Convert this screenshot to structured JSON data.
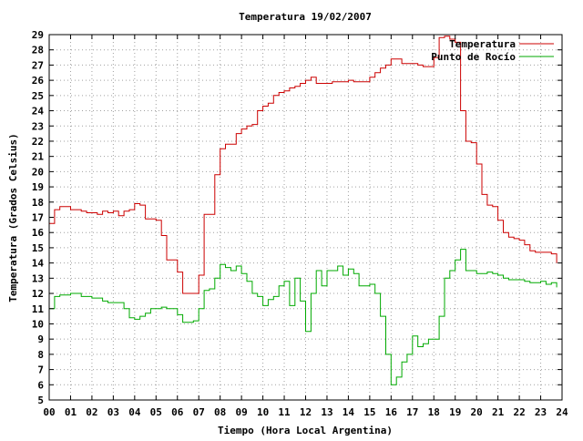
{
  "chart_data": {
    "type": "line",
    "title": "Temperatura 19/02/2007",
    "xlabel": "Tiempo (Hora Local Argentina)",
    "ylabel": "Temperatura (Grados Celsius)",
    "xlim": [
      0,
      24
    ],
    "ylim": [
      5,
      29
    ],
    "grid": true,
    "legend_position": "top-right",
    "x_tick_labels": [
      "00",
      "01",
      "02",
      "03",
      "04",
      "05",
      "06",
      "07",
      "08",
      "09",
      "10",
      "11",
      "12",
      "13",
      "14",
      "15",
      "16",
      "17",
      "18",
      "19",
      "20",
      "21",
      "22",
      "23",
      "24"
    ],
    "y_ticks": [
      5,
      6,
      7,
      8,
      9,
      10,
      11,
      12,
      13,
      14,
      15,
      16,
      17,
      18,
      19,
      20,
      21,
      22,
      23,
      24,
      25,
      26,
      27,
      28,
      29
    ],
    "series": [
      {
        "name": "Temperatura",
        "color": "#cc0000",
        "x": [
          0.0,
          0.25,
          0.5,
          0.75,
          1.0,
          1.25,
          1.5,
          1.75,
          2.0,
          2.25,
          2.5,
          2.75,
          3.0,
          3.25,
          3.5,
          3.75,
          4.0,
          4.25,
          4.5,
          4.75,
          5.0,
          5.25,
          5.5,
          5.75,
          6.0,
          6.25,
          6.5,
          6.75,
          7.0,
          7.25,
          7.5,
          7.75,
          8.0,
          8.25,
          8.5,
          8.75,
          9.0,
          9.25,
          9.5,
          9.75,
          10.0,
          10.25,
          10.5,
          10.75,
          11.0,
          11.25,
          11.5,
          11.75,
          12.0,
          12.25,
          12.5,
          12.75,
          13.0,
          13.25,
          13.5,
          13.75,
          14.0,
          14.25,
          14.5,
          14.75,
          15.0,
          15.25,
          15.5,
          15.75,
          16.0,
          16.25,
          16.5,
          16.75,
          17.0,
          17.25,
          17.5,
          17.75,
          18.0,
          18.25,
          18.5,
          18.75,
          19.0,
          19.25,
          19.5,
          19.75,
          20.0,
          20.25,
          20.5,
          20.75,
          21.0,
          21.25,
          21.5,
          21.75,
          22.0,
          22.25,
          22.5,
          22.75,
          23.0,
          23.25,
          23.5,
          23.75
        ],
        "values": [
          16.6,
          17.5,
          17.7,
          17.7,
          17.5,
          17.5,
          17.4,
          17.3,
          17.3,
          17.2,
          17.4,
          17.3,
          17.4,
          17.1,
          17.4,
          17.5,
          17.9,
          17.8,
          16.9,
          16.9,
          16.8,
          15.8,
          14.2,
          14.2,
          13.4,
          12.0,
          12.0,
          12.0,
          13.2,
          17.2,
          17.2,
          19.8,
          21.5,
          21.8,
          21.8,
          22.5,
          22.8,
          23.0,
          23.1,
          24.0,
          24.3,
          24.5,
          25.0,
          25.2,
          25.3,
          25.5,
          25.6,
          25.8,
          26.0,
          26.2,
          25.8,
          25.8,
          25.8,
          25.9,
          25.9,
          25.9,
          26.0,
          25.9,
          25.9,
          25.9,
          26.2,
          26.5,
          26.8,
          27.0,
          27.4,
          27.4,
          27.1,
          27.1,
          27.1,
          27.0,
          26.9,
          26.9,
          27.5,
          28.8,
          28.9,
          28.7,
          28.5,
          24.0,
          22.0,
          21.9,
          20.5,
          18.5,
          17.8,
          17.7,
          16.8,
          16.0,
          15.7,
          15.6,
          15.5,
          15.2,
          14.8,
          14.7,
          14.7,
          14.7,
          14.6,
          14.0
        ]
      },
      {
        "name": "Punto de Rocío",
        "color": "#00aa00",
        "x": [
          0.0,
          0.25,
          0.5,
          0.75,
          1.0,
          1.25,
          1.5,
          1.75,
          2.0,
          2.25,
          2.5,
          2.75,
          3.0,
          3.25,
          3.5,
          3.75,
          4.0,
          4.25,
          4.5,
          4.75,
          5.0,
          5.25,
          5.5,
          5.75,
          6.0,
          6.25,
          6.5,
          6.75,
          7.0,
          7.25,
          7.5,
          7.75,
          8.0,
          8.25,
          8.5,
          8.75,
          9.0,
          9.25,
          9.5,
          9.75,
          10.0,
          10.25,
          10.5,
          10.75,
          11.0,
          11.25,
          11.5,
          11.75,
          12.0,
          12.25,
          12.5,
          12.75,
          13.0,
          13.25,
          13.5,
          13.75,
          14.0,
          14.25,
          14.5,
          14.75,
          15.0,
          15.25,
          15.5,
          15.75,
          16.0,
          16.25,
          16.5,
          16.75,
          17.0,
          17.25,
          17.5,
          17.75,
          18.0,
          18.25,
          18.5,
          18.75,
          19.0,
          19.25,
          19.5,
          19.75,
          20.0,
          20.25,
          20.5,
          20.75,
          21.0,
          21.25,
          21.5,
          21.75,
          22.0,
          22.25,
          22.5,
          22.75,
          23.0,
          23.25,
          23.5,
          23.75
        ],
        "values": [
          11.0,
          11.8,
          11.9,
          11.9,
          12.0,
          12.0,
          11.8,
          11.8,
          11.7,
          11.7,
          11.5,
          11.4,
          11.4,
          11.4,
          11.0,
          10.4,
          10.3,
          10.5,
          10.7,
          11.0,
          11.0,
          11.1,
          11.0,
          11.0,
          10.6,
          10.1,
          10.1,
          10.2,
          11.0,
          12.2,
          12.3,
          13.0,
          13.9,
          13.7,
          13.5,
          13.8,
          13.3,
          12.8,
          12.0,
          11.8,
          11.2,
          11.6,
          11.8,
          12.5,
          12.8,
          11.2,
          13.0,
          11.5,
          9.5,
          12.0,
          13.5,
          12.5,
          13.5,
          13.5,
          13.8,
          13.2,
          13.6,
          13.3,
          12.5,
          12.5,
          12.6,
          12.0,
          10.5,
          8.0,
          6.0,
          6.5,
          7.5,
          8.0,
          9.2,
          8.5,
          8.7,
          9.0,
          9.0,
          10.5,
          13.0,
          13.5,
          14.2,
          14.9,
          13.5,
          13.5,
          13.3,
          13.3,
          13.4,
          13.3,
          13.2,
          13.0,
          12.9,
          12.9,
          12.9,
          12.8,
          12.7,
          12.7,
          12.8,
          12.6,
          12.7,
          12.4
        ]
      }
    ]
  }
}
